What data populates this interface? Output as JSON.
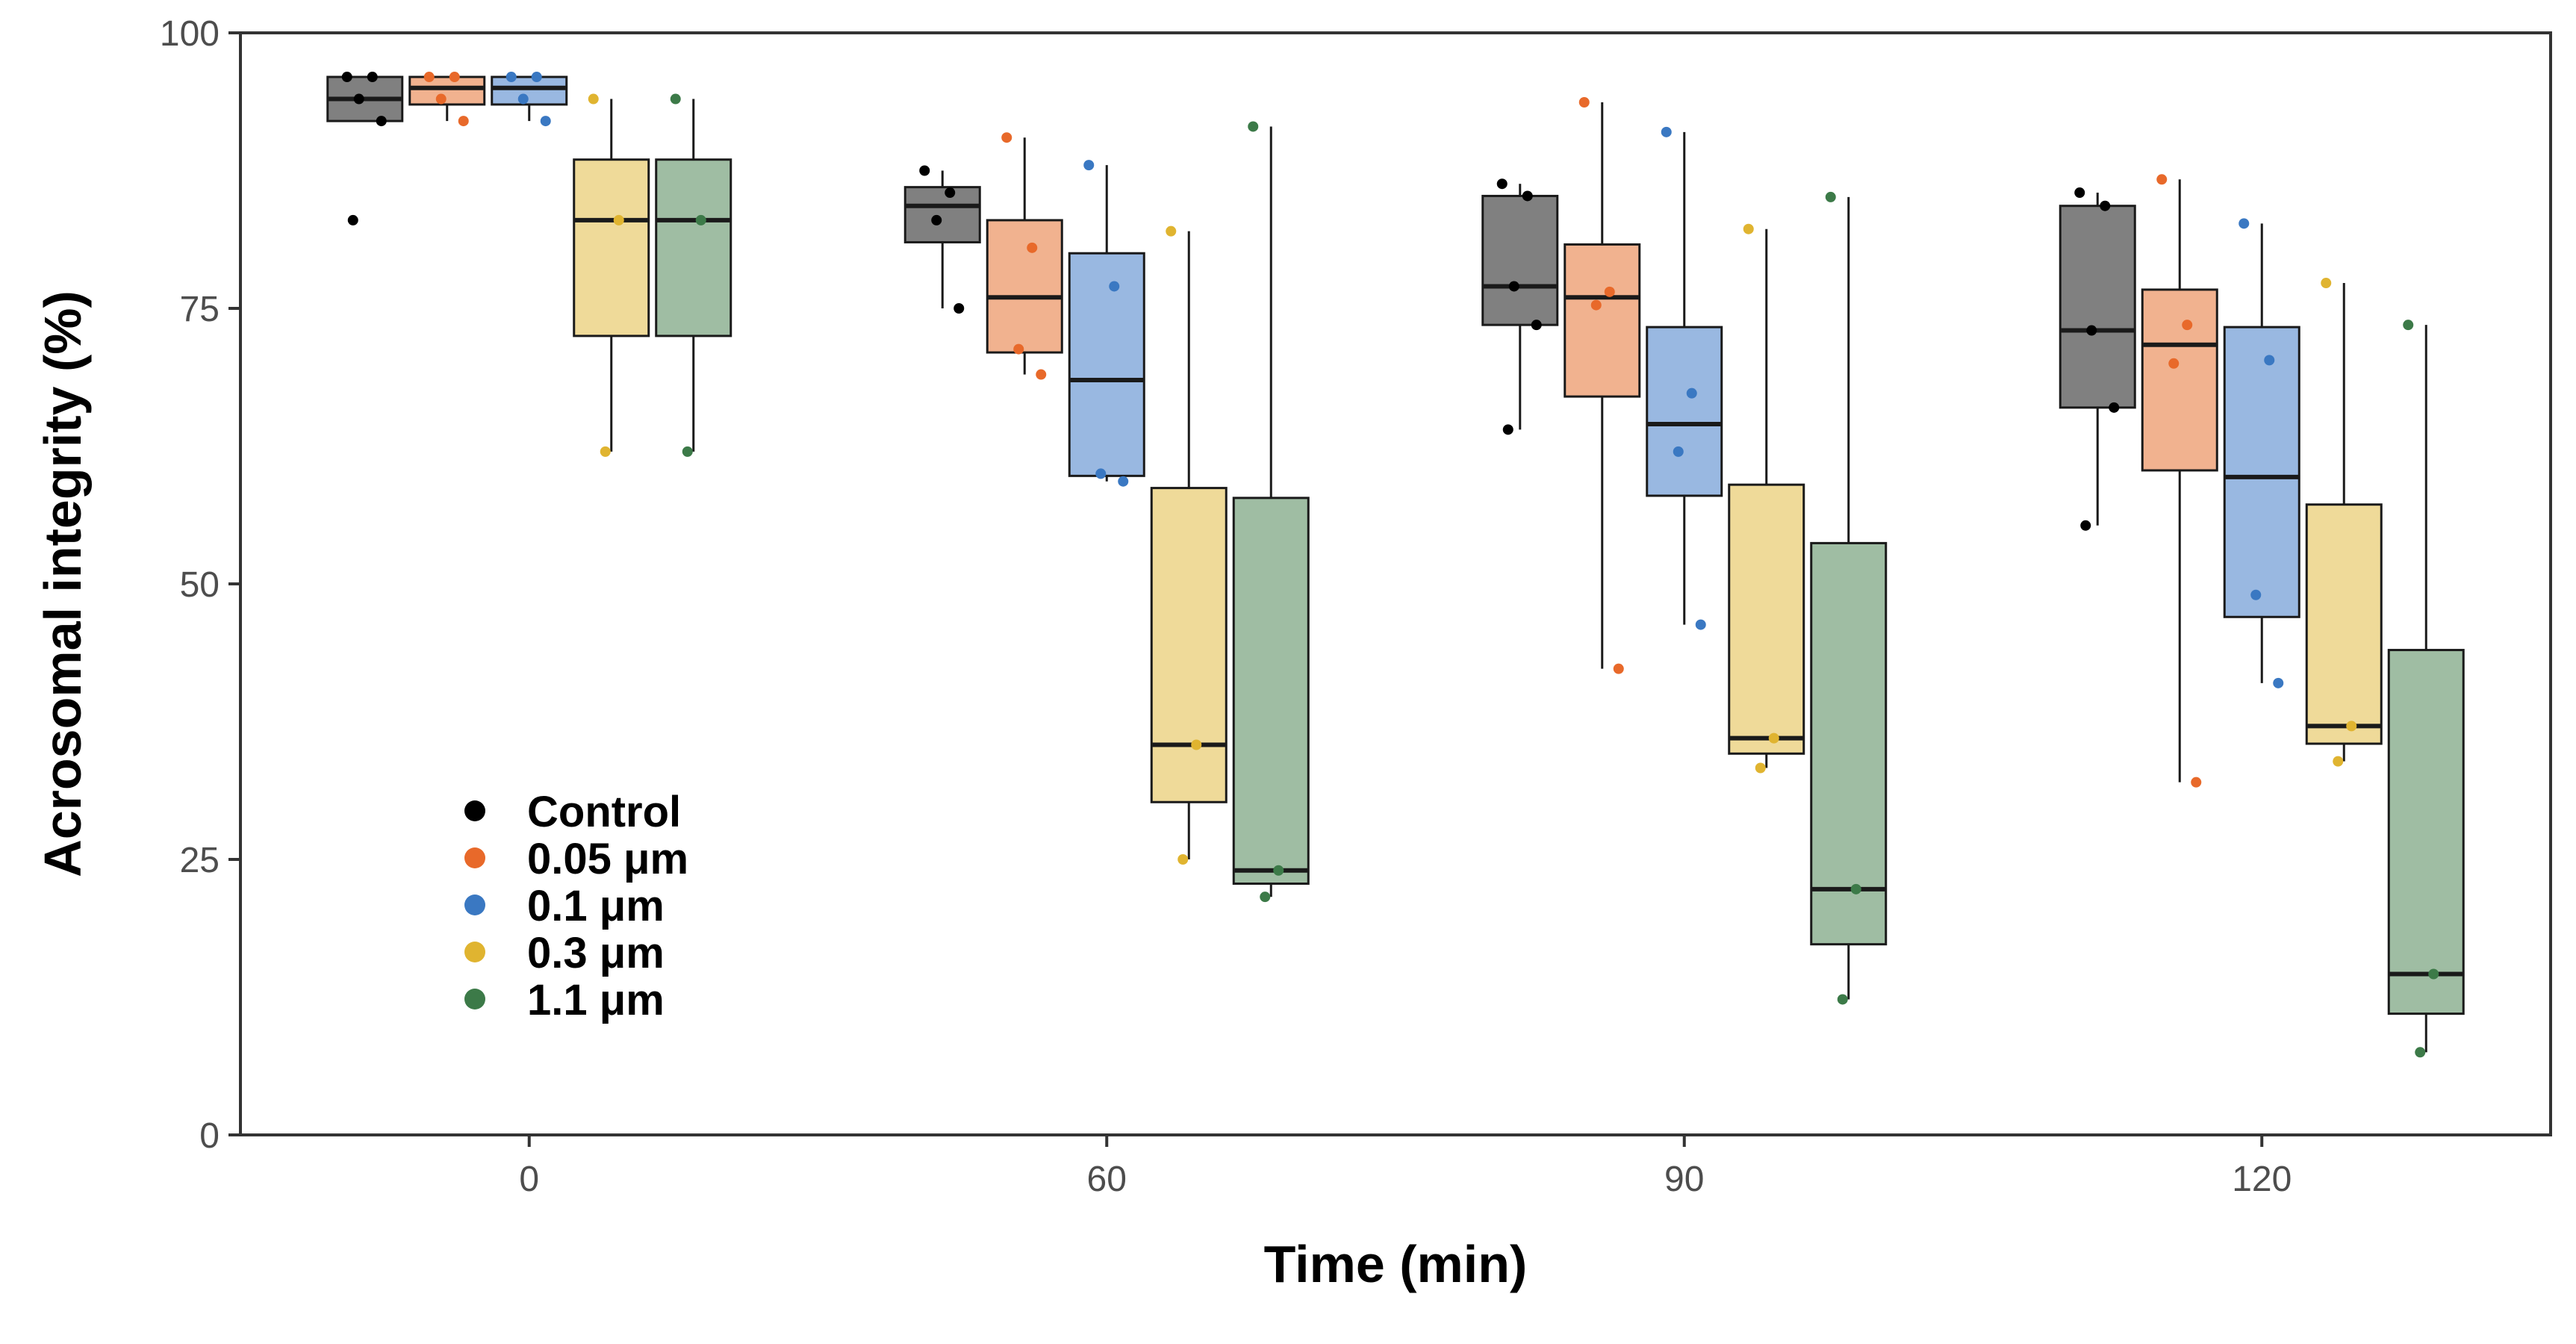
{
  "chart_data": {
    "type": "box",
    "xlabel": "Time (min)",
    "ylabel": "Acrosomal integrity (%)",
    "ylim": [
      0,
      100
    ],
    "yticks": [
      0,
      25,
      50,
      75,
      100
    ],
    "categories": [
      "0",
      "60",
      "90",
      "120"
    ],
    "grid": false,
    "legend_position": "bottom-left, inside plot",
    "series": [
      {
        "name": "Control",
        "point_color": "#000000",
        "box_color": "#808080",
        "boxes": [
          {
            "whisker_low": 92,
            "q1": 92,
            "median": 94,
            "q3": 96,
            "whisker_high": 96,
            "points": [
              96,
              96,
              94,
              92,
              83
            ]
          },
          {
            "whisker_low": 75,
            "q1": 81,
            "median": 84.3,
            "q3": 86,
            "whisker_high": 87.5,
            "points": [
              87.5,
              85.5,
              83,
              75
            ]
          },
          {
            "whisker_low": 64,
            "q1": 73.5,
            "median": 77,
            "q3": 85.2,
            "whisker_high": 86.3,
            "points": [
              86.3,
              85.2,
              77,
              73.5,
              64
            ]
          },
          {
            "whisker_low": 55.3,
            "q1": 66,
            "median": 73,
            "q3": 84.3,
            "whisker_high": 85.5,
            "points": [
              85.5,
              84.3,
              73,
              66,
              55.3
            ]
          }
        ]
      },
      {
        "name": "0.05 μm",
        "point_color": "#e8692a",
        "box_color": "#f1b28f",
        "boxes": [
          {
            "whisker_low": 92,
            "q1": 93.5,
            "median": 95,
            "q3": 96,
            "whisker_high": 96,
            "points": [
              96,
              96,
              94,
              92
            ]
          },
          {
            "whisker_low": 69,
            "q1": 71,
            "median": 76,
            "q3": 83,
            "whisker_high": 90.5,
            "points": [
              90.5,
              80.5,
              71.3,
              69
            ]
          },
          {
            "whisker_low": 42.3,
            "q1": 67,
            "median": 76,
            "q3": 80.8,
            "whisker_high": 93.7,
            "points": [
              93.7,
              76.5,
              75.3,
              42.3
            ]
          },
          {
            "whisker_low": 32,
            "q1": 60.3,
            "median": 71.7,
            "q3": 76.7,
            "whisker_high": 86.7,
            "points": [
              86.7,
              73.5,
              70,
              32
            ]
          }
        ]
      },
      {
        "name": "0.1 μm",
        "point_color": "#3a78c2",
        "box_color": "#99b8e1",
        "boxes": [
          {
            "whisker_low": 92,
            "q1": 93.5,
            "median": 95,
            "q3": 96,
            "whisker_high": 96,
            "points": [
              96,
              96,
              94,
              92
            ]
          },
          {
            "whisker_low": 59.3,
            "q1": 59.8,
            "median": 68.5,
            "q3": 80,
            "whisker_high": 88,
            "points": [
              88,
              77,
              60,
              59.3
            ]
          },
          {
            "whisker_low": 46.3,
            "q1": 58,
            "median": 64.5,
            "q3": 73.3,
            "whisker_high": 91,
            "points": [
              91,
              67.3,
              62,
              46.3
            ]
          },
          {
            "whisker_low": 41,
            "q1": 47,
            "median": 59.7,
            "q3": 73.3,
            "whisker_high": 82.7,
            "points": [
              82.7,
              70.3,
              49,
              41
            ]
          }
        ]
      },
      {
        "name": "0.3 μm",
        "point_color": "#e0b430",
        "box_color": "#efda99",
        "boxes": [
          {
            "whisker_low": 62,
            "q1": 72.5,
            "median": 83,
            "q3": 88.5,
            "whisker_high": 94,
            "points": [
              94,
              83,
              62
            ]
          },
          {
            "whisker_low": 25,
            "q1": 30.2,
            "median": 35.4,
            "q3": 58.7,
            "whisker_high": 82,
            "points": [
              82,
              35.4,
              25
            ]
          },
          {
            "whisker_low": 33.3,
            "q1": 34.6,
            "median": 36,
            "q3": 59,
            "whisker_high": 82.2,
            "points": [
              82.2,
              36,
              33.3
            ]
          },
          {
            "whisker_low": 33.9,
            "q1": 35.5,
            "median": 37.1,
            "q3": 57.2,
            "whisker_high": 77.3,
            "points": [
              77.3,
              37.1,
              33.9
            ]
          }
        ]
      },
      {
        "name": "1.1 μm",
        "point_color": "#3c7a48",
        "box_color": "#9fbda3",
        "boxes": [
          {
            "whisker_low": 62,
            "q1": 72.5,
            "median": 83,
            "q3": 88.5,
            "whisker_high": 94,
            "points": [
              94,
              83,
              62
            ]
          },
          {
            "whisker_low": 21.6,
            "q1": 22.8,
            "median": 24,
            "q3": 57.8,
            "whisker_high": 91.5,
            "points": [
              91.5,
              24,
              21.6
            ]
          },
          {
            "whisker_low": 12.3,
            "q1": 17.3,
            "median": 22.3,
            "q3": 53.7,
            "whisker_high": 85.1,
            "points": [
              85.1,
              22.3,
              12.3
            ]
          },
          {
            "whisker_low": 7.5,
            "q1": 11,
            "median": 14.6,
            "q3": 44,
            "whisker_high": 73.5,
            "points": [
              73.5,
              14.6,
              7.5
            ]
          }
        ]
      }
    ]
  }
}
